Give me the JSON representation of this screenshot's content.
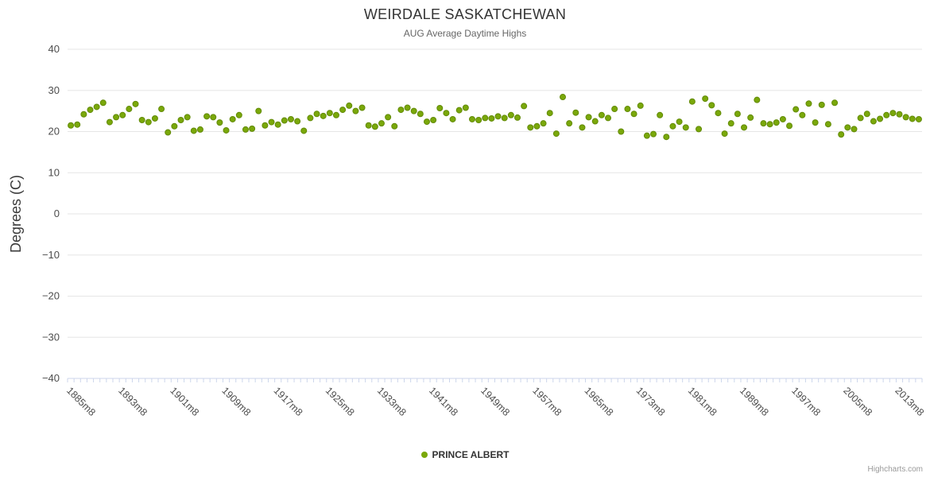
{
  "credits": "Highcharts.com",
  "chart_data": {
    "type": "scatter",
    "title": "WEIRDALE SASKATCHEWAN",
    "subtitle": "AUG Average Daytime Highs",
    "xlabel": "",
    "ylabel": "Degrees (C)",
    "ylim": [
      -40,
      40
    ],
    "y_tick_step": 10,
    "grid": true,
    "legend_position": "bottom-center",
    "x_start_year": 1885,
    "x_end_year": 2016,
    "x_label_suffix": "m8",
    "x_tick_interval": 8,
    "x_tick_labels": [
      "1885m8",
      "1893m8",
      "1901m8",
      "1909m8",
      "1917m8",
      "1925m8",
      "1933m8",
      "1941m8",
      "1949m8",
      "1957m8",
      "1965m8",
      "1973m8",
      "1981m8",
      "1989m8",
      "1997m8",
      "2005m8",
      "2013m8"
    ],
    "colors": {
      "point": "#7aa80a",
      "point_stroke": "#628a06",
      "grid": "#e6e6e6",
      "axis_line": "#ccd6eb",
      "labels": "#4d4d4d",
      "axis_title": "#3a3a3a"
    },
    "series": [
      {
        "name": "PRINCE ALBERT",
        "color": "#7aa80a",
        "values": [
          21.5,
          21.7,
          24.2,
          25.3,
          26.0,
          27.0,
          22.3,
          23.5,
          24.0,
          25.5,
          26.7,
          22.8,
          22.3,
          23.2,
          25.5,
          19.8,
          21.3,
          22.8,
          23.5,
          20.2,
          20.5,
          23.7,
          23.5,
          22.2,
          20.3,
          23.0,
          24.0,
          20.5,
          20.7,
          25.0,
          21.5,
          22.3,
          21.7,
          22.7,
          23.0,
          22.5,
          20.2,
          23.3,
          24.3,
          23.8,
          24.5,
          24.0,
          25.3,
          26.3,
          25.0,
          25.8,
          21.5,
          21.2,
          22.0,
          23.5,
          21.3,
          25.3,
          25.8,
          25.0,
          24.3,
          22.4,
          22.8,
          25.7,
          24.5,
          23.0,
          25.2,
          25.8,
          23.0,
          22.8,
          23.3,
          23.2,
          23.7,
          23.3,
          24.0,
          23.4,
          26.2,
          21.0,
          21.3,
          22.0,
          24.5,
          19.5,
          28.4,
          22.0,
          24.6,
          21.0,
          23.5,
          22.5,
          24.0,
          23.3,
          25.5,
          20.0,
          25.5,
          24.3,
          26.3,
          19.0,
          19.4,
          24.0,
          18.7,
          21.3,
          22.4,
          21.0,
          27.3,
          20.6,
          28.0,
          26.4,
          24.5,
          19.5,
          22.0,
          24.3,
          21.0,
          23.4,
          27.7,
          22.0,
          21.8,
          22.2,
          23.0,
          21.4,
          25.4,
          24.0,
          26.8,
          22.2,
          26.5,
          21.8,
          27.0,
          19.3,
          21.0,
          20.6,
          23.3,
          24.3,
          22.5,
          23.1,
          24.0,
          24.5,
          24.2,
          23.5,
          23.1,
          23.0
        ]
      }
    ]
  }
}
